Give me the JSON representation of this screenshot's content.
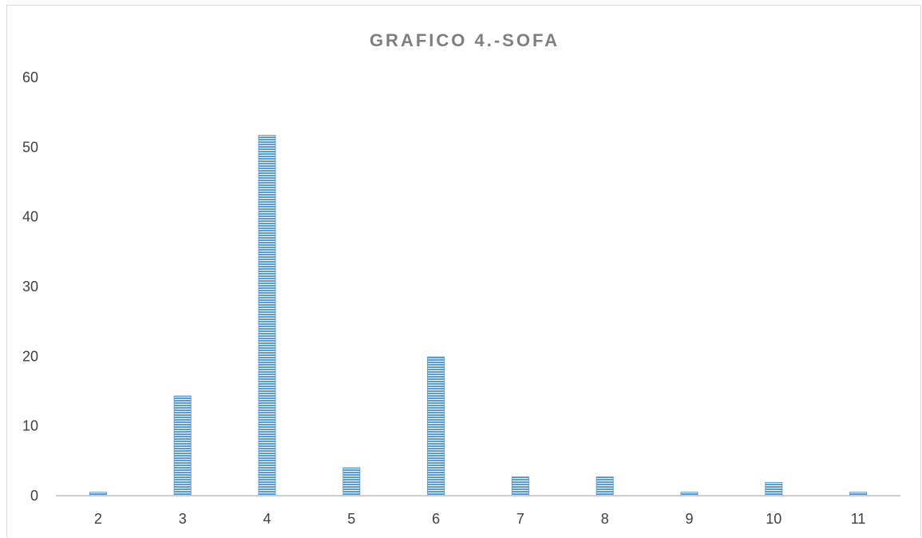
{
  "chart_data": {
    "type": "bar",
    "title": "GRAFICO 4.-SOFA",
    "xlabel": "",
    "ylabel": "",
    "categories": [
      "2",
      "3",
      "4",
      "5",
      "6",
      "7",
      "8",
      "9",
      "10",
      "11"
    ],
    "values": [
      0.5,
      14.3,
      51.7,
      4.0,
      19.9,
      2.7,
      2.7,
      0.5,
      1.9,
      0.5
    ],
    "ylim": [
      0,
      60
    ],
    "yticks": [
      "0",
      "10",
      "20",
      "30",
      "40",
      "50",
      "60"
    ],
    "grid": false,
    "legend": "none",
    "bar_color": "#5b9bd5",
    "bar_stripe_color": "#ffffff",
    "axis_color": "#bfbfbf"
  }
}
